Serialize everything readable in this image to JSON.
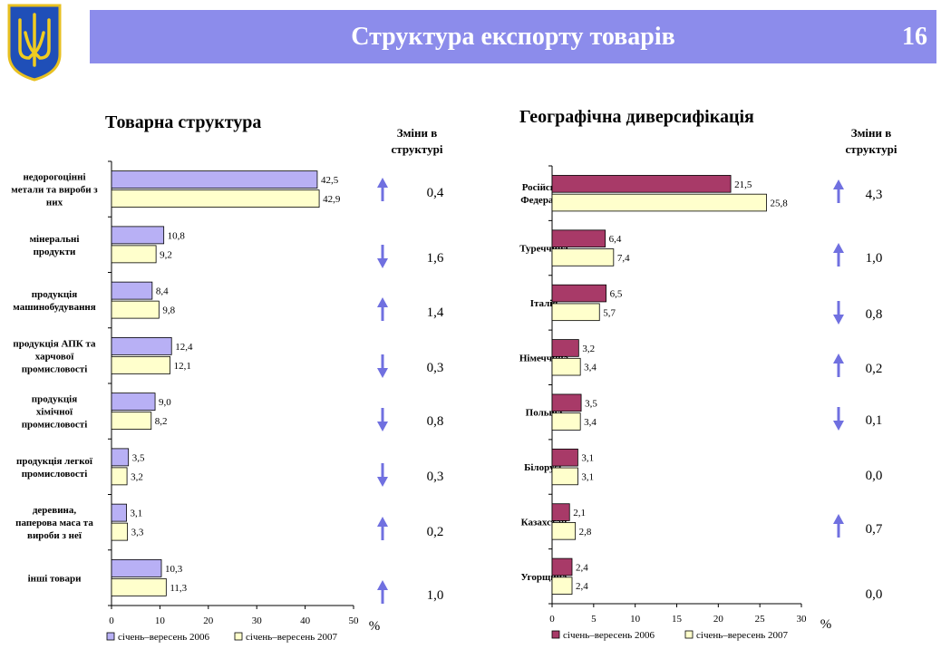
{
  "header": {
    "title": "Структура експорту товарів",
    "page_number": "16"
  },
  "colors": {
    "banner": "#8c8ceb",
    "series_left_2006": "#b8b0f5",
    "series_right_2006": "#a83a68",
    "series_2007": "#ffffcc",
    "arrow": "#7070e0"
  },
  "chart_data": [
    {
      "type": "bar",
      "orientation": "horizontal",
      "title": "Товарна структура",
      "categories": [
        [
          "недорогоцінні",
          "метали та вироби з",
          "них"
        ],
        [
          "мінеральні",
          "продукти"
        ],
        [
          "продукція",
          "машинобудування"
        ],
        [
          "продукція АПК та",
          "харчової",
          "промисловості"
        ],
        [
          "продукція",
          "хімічної",
          "промисловості"
        ],
        [
          "продукція легкої",
          "промисловості"
        ],
        [
          "деревина,",
          "паперова маса та",
          "вироби з неї"
        ],
        [
          "інші товари"
        ]
      ],
      "series": [
        {
          "name": "січень–вересень 2006",
          "values": [
            42.5,
            10.8,
            8.4,
            12.4,
            9.0,
            3.5,
            3.1,
            10.3
          ],
          "labels": [
            "42,5",
            "10,8",
            "8,4",
            "12,4",
            "9,0",
            "3,5",
            "3,1",
            "10,3"
          ]
        },
        {
          "name": "січень–вересень 2007",
          "values": [
            42.9,
            9.2,
            9.8,
            12.1,
            8.2,
            3.2,
            3.3,
            11.3
          ],
          "labels": [
            "42,9",
            "9,2",
            "9,8",
            "12,1",
            "8,2",
            "3,2",
            "3,3",
            "11,3"
          ]
        }
      ],
      "xlim": [
        0,
        50
      ],
      "xticks": [
        "0",
        "10",
        "20",
        "30",
        "40",
        "50"
      ],
      "xlabel": "%",
      "changes_header": [
        "Зміни в",
        "структурі"
      ],
      "changes": [
        {
          "value": "0,4",
          "direction": "up"
        },
        {
          "value": "1,6",
          "direction": "down"
        },
        {
          "value": "1,4",
          "direction": "up"
        },
        {
          "value": "0,3",
          "direction": "down"
        },
        {
          "value": "0,8",
          "direction": "down"
        },
        {
          "value": "0,3",
          "direction": "down"
        },
        {
          "value": "0,2",
          "direction": "up"
        },
        {
          "value": "1,0",
          "direction": "up"
        }
      ],
      "legend_position": "bottom"
    },
    {
      "type": "bar",
      "orientation": "horizontal",
      "title": "Географічна диверсифікація",
      "categories": [
        [
          "Російська",
          "Федерація"
        ],
        [
          "Туреччина"
        ],
        [
          "Італія"
        ],
        [
          "Німеччина"
        ],
        [
          "Польща"
        ],
        [
          "Білорусь"
        ],
        [
          "Казахстан"
        ],
        [
          "Угорщина"
        ]
      ],
      "series": [
        {
          "name": "січень–вересень 2006",
          "values": [
            21.5,
            6.4,
            6.5,
            3.2,
            3.5,
            3.1,
            2.1,
            2.4
          ],
          "labels": [
            "21,5",
            "6,4",
            "6,5",
            "3,2",
            "3,5",
            "3,1",
            "2,1",
            "2,4"
          ]
        },
        {
          "name": "січень–вересень 2007",
          "values": [
            25.8,
            7.4,
            5.7,
            3.4,
            3.4,
            3.1,
            2.8,
            2.4
          ],
          "labels": [
            "25,8",
            "7,4",
            "5,7",
            "3,4",
            "3,4",
            "3,1",
            "2,8",
            "2,4"
          ]
        }
      ],
      "xlim": [
        0,
        30
      ],
      "xticks": [
        "0",
        "5",
        "10",
        "15",
        "20",
        "25",
        "30"
      ],
      "xlabel": "%",
      "changes_header": [
        "Зміни в",
        "структурі"
      ],
      "changes": [
        {
          "value": "4,3",
          "direction": "up"
        },
        {
          "value": "1,0",
          "direction": "up"
        },
        {
          "value": "0,8",
          "direction": "down"
        },
        {
          "value": "0,2",
          "direction": "up"
        },
        {
          "value": "0,1",
          "direction": "down"
        },
        {
          "value": "0,0",
          "direction": "none"
        },
        {
          "value": "0,7",
          "direction": "up"
        },
        {
          "value": "0,0",
          "direction": "none"
        }
      ],
      "legend_position": "bottom"
    }
  ]
}
